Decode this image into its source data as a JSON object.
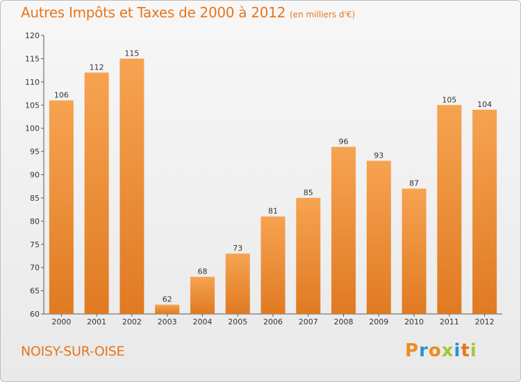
{
  "header": {
    "title": "Autres Impôts et Taxes de 2000 à 2012",
    "subtitle": "(en milliers d'€)"
  },
  "footer": {
    "city": "NOISY-SUR-OISE",
    "logo_text": "Proxiti"
  },
  "colors": {
    "accent": "#e8751a",
    "bar_light": "#f6a351",
    "bar_dark": "#e07a22",
    "logo_letters": [
      "#f08a1c",
      "#2f8fd8",
      "#f08a1c",
      "#a4c639",
      "#2f8fd8",
      "#e8751a",
      "#a4c639"
    ]
  },
  "chart_data": {
    "type": "bar",
    "title": "Autres Impôts et Taxes de 2000 à 2012",
    "subtitle": "(en milliers d'€)",
    "categories": [
      "2000",
      "2001",
      "2002",
      "2003",
      "2004",
      "2005",
      "2006",
      "2007",
      "2008",
      "2009",
      "2010",
      "2011",
      "2012"
    ],
    "values": [
      106,
      112,
      115,
      62,
      68,
      73,
      81,
      85,
      96,
      93,
      87,
      105,
      104
    ],
    "ylim": [
      60,
      120
    ],
    "yticks": [
      60,
      65,
      70,
      75,
      80,
      85,
      90,
      95,
      100,
      105,
      110,
      115,
      120
    ],
    "grid": false,
    "data_labels": true
  }
}
